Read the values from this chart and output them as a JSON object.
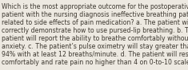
{
  "lines": [
    "Which is the most appropriate outcome for the postoperative",
    "patient with the nursing diagnosis ineffective breathing pattern",
    "related to side effects of pain medication? a. The patient will",
    "correctly demonstrate how to use pursed-lip breathing. b. The",
    "patient will report the ability to breathe comfortably without",
    "anxiety. c. The patient’s pulse oximetry will stay greater than",
    "94% with at least 12 breaths/minute. d. The patient will rest",
    "comfortably and rate pain no higher than 4 on 0-to-10 scale."
  ],
  "background_color": "#ede9e1",
  "text_color": "#3d3830",
  "font_size": 5.6,
  "fig_width": 2.35,
  "fig_height": 0.88,
  "dpi": 100
}
